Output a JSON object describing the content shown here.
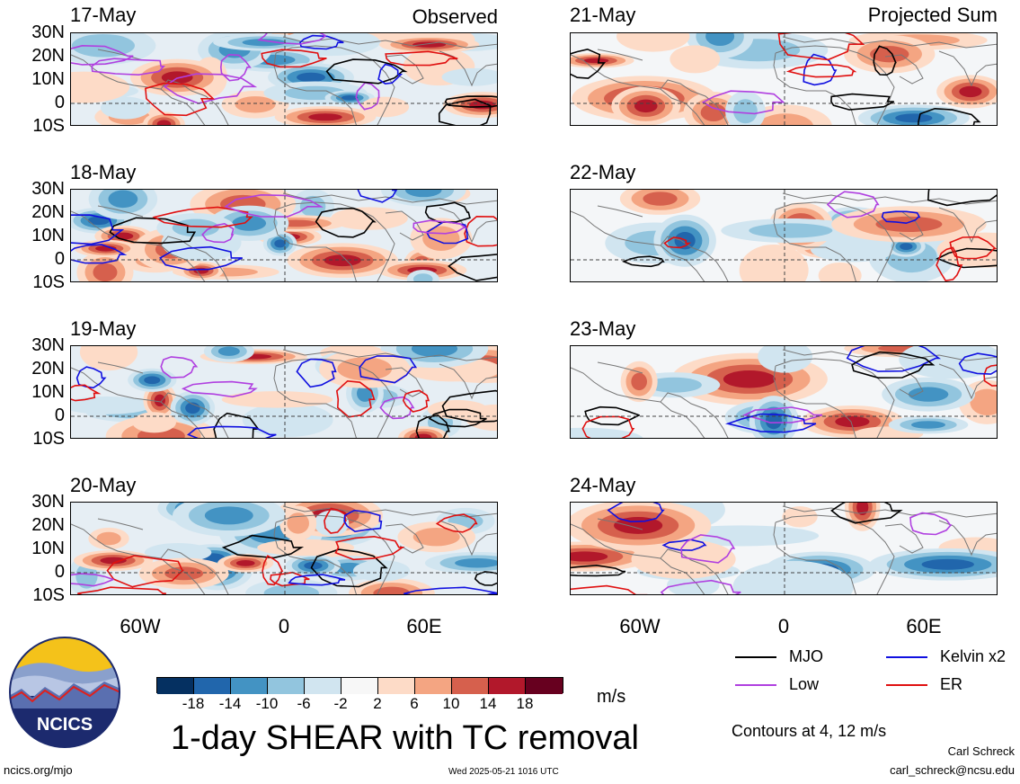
{
  "panels_left": {
    "tag": "Observed",
    "dates": [
      "17-May",
      "18-May",
      "19-May",
      "20-May"
    ]
  },
  "panels_right": {
    "tag": "Projected Sum",
    "dates": [
      "21-May",
      "22-May",
      "23-May",
      "24-May"
    ]
  },
  "lat_labels": [
    "30N",
    "20N",
    "10N",
    "0",
    "10S"
  ],
  "lon_labels": [
    "60W",
    "0",
    "60E"
  ],
  "colorbar": {
    "colors": [
      "#053061",
      "#2166ac",
      "#4393c3",
      "#92c5de",
      "#d1e5f0",
      "#f7f7f7",
      "#fddbc7",
      "#f4a582",
      "#d6604d",
      "#b2182b",
      "#67001f"
    ],
    "ticks": [
      "-18",
      "-14",
      "-10",
      "-6",
      "-2",
      "2",
      "6",
      "10",
      "14",
      "18"
    ],
    "units": "m/s"
  },
  "legend": {
    "items": [
      {
        "label": "MJO",
        "color": "#000000"
      },
      {
        "label": "Kelvin x2",
        "color": "#1010e0"
      },
      {
        "label": "Low",
        "color": "#b040e0"
      },
      {
        "label": "ER",
        "color": "#e01010"
      }
    ],
    "contours": "Contours at 4, 12 m/s"
  },
  "title": "1-day SHEAR with TC removal",
  "logo_text": "NCICS",
  "footer": {
    "left": "ncics.org/mjo",
    "center": "Wed 2025-05-21 1016 UTC",
    "author": "Carl Schreck",
    "email": "carl_schreck@ncsu.edu"
  }
}
